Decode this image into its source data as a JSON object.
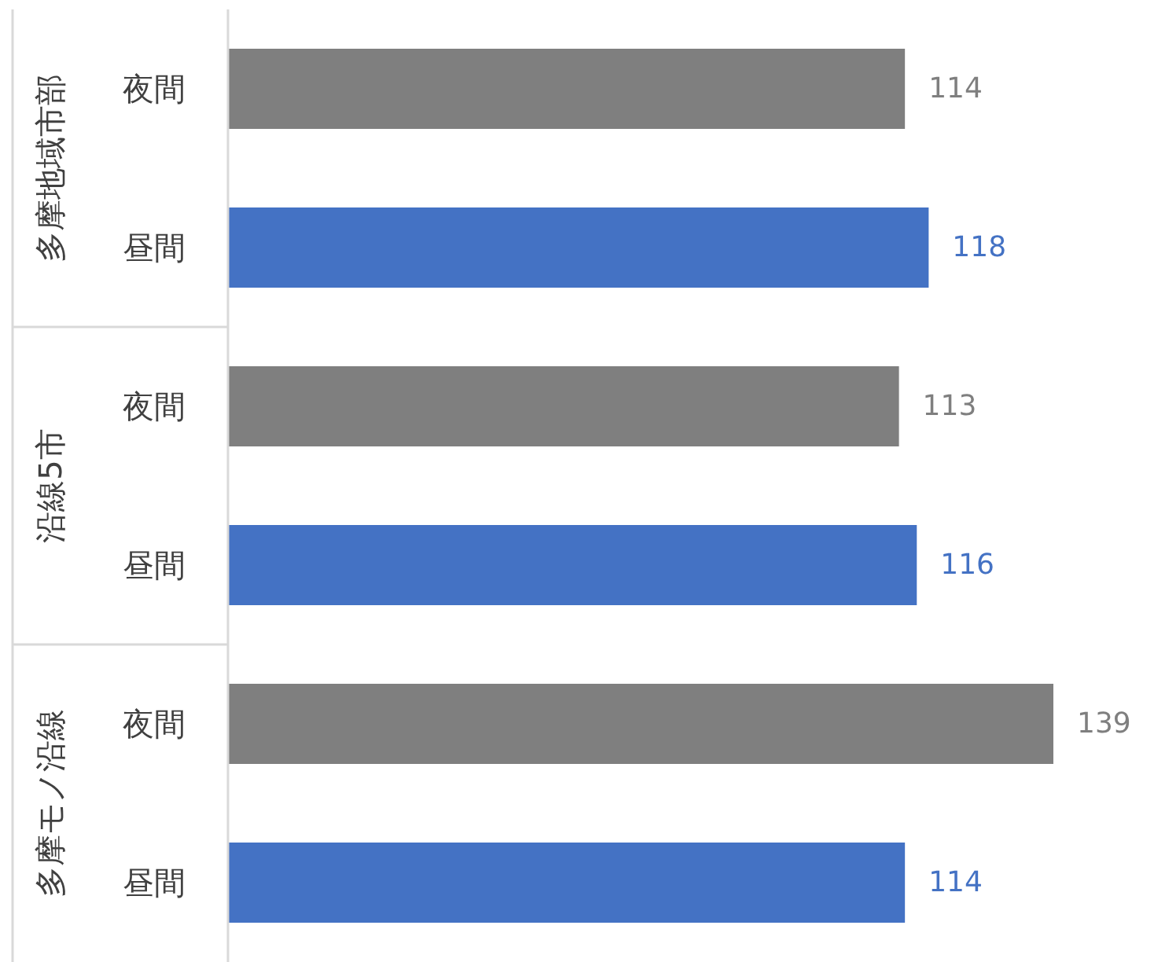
{
  "chart_data": {
    "type": "bar",
    "orientation": "horizontal",
    "categories": [
      "夜間",
      "昼間",
      "夜間",
      "昼間",
      "夜間",
      "昼間"
    ],
    "values": [
      114,
      118,
      113,
      116,
      139,
      114
    ],
    "colors": [
      "#7f7f7f",
      "#4472c4",
      "#7f7f7f",
      "#4472c4",
      "#7f7f7f",
      "#4472c4"
    ],
    "data_labels": true,
    "annotations": [
      "多摩地域市部",
      "沿線5市",
      "多摩モノ沿線"
    ]
  }
}
